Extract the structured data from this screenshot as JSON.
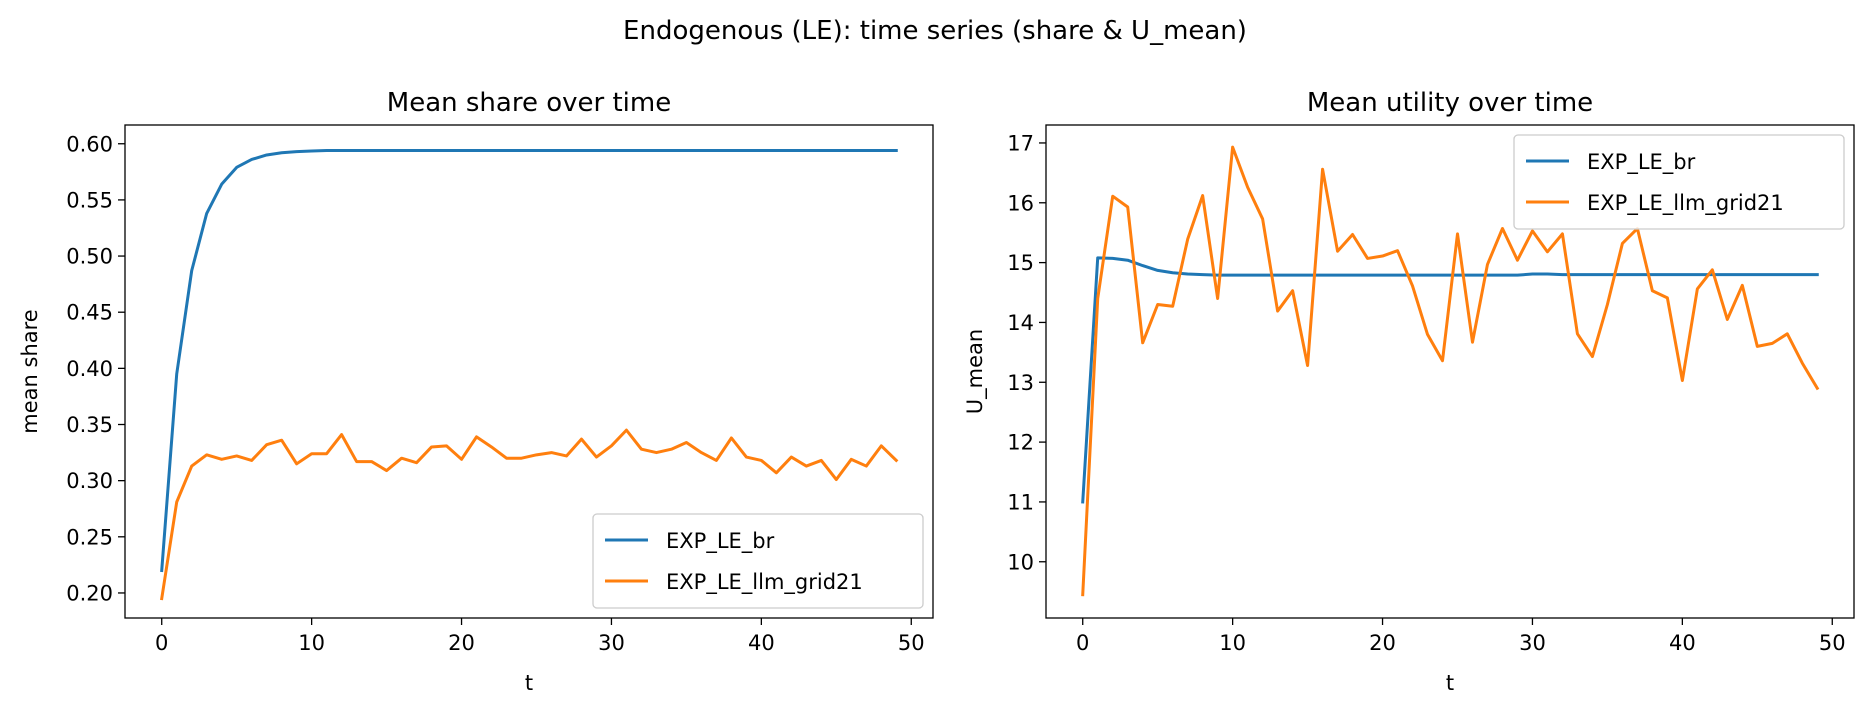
{
  "figure": {
    "suptitle": "Endogenous (LE): time series (share & U_mean)"
  },
  "colors": {
    "EXP_LE_br": "#1f77b4",
    "EXP_LE_llm_grid21": "#ff7f0e",
    "axes": "#000000",
    "legend_border": "#cccccc"
  },
  "chart_data": [
    {
      "type": "line",
      "title": "Mean share over time",
      "xlabel": "t",
      "ylabel": "mean share",
      "xlim": [
        -2.45,
        51.45
      ],
      "ylim": [
        0.1777,
        0.6167
      ],
      "xticks": [
        0,
        10,
        20,
        30,
        40,
        50
      ],
      "xtick_labels": [
        "0",
        "10",
        "20",
        "30",
        "40",
        "50"
      ],
      "yticks": [
        0.2,
        0.25,
        0.3,
        0.35,
        0.4,
        0.45,
        0.5,
        0.55,
        0.6
      ],
      "ytick_labels": [
        "0.20",
        "0.25",
        "0.30",
        "0.35",
        "0.40",
        "0.45",
        "0.50",
        "0.55",
        "0.60"
      ],
      "grid": false,
      "legend": "lower-right",
      "x": [
        0,
        1,
        2,
        3,
        4,
        5,
        6,
        7,
        8,
        9,
        10,
        11,
        12,
        13,
        14,
        15,
        16,
        17,
        18,
        19,
        20,
        21,
        22,
        23,
        24,
        25,
        26,
        27,
        28,
        29,
        30,
        31,
        32,
        33,
        34,
        35,
        36,
        37,
        38,
        39,
        40,
        41,
        42,
        43,
        44,
        45,
        46,
        47,
        48,
        49
      ],
      "series": [
        {
          "name": "EXP_LE_br",
          "values": [
            0.22,
            0.395,
            0.487,
            0.538,
            0.564,
            0.579,
            0.586,
            0.59,
            0.592,
            0.593,
            0.5935,
            0.594,
            0.594,
            0.594,
            0.594,
            0.594,
            0.594,
            0.594,
            0.594,
            0.594,
            0.594,
            0.594,
            0.594,
            0.594,
            0.594,
            0.594,
            0.594,
            0.594,
            0.594,
            0.594,
            0.594,
            0.594,
            0.594,
            0.594,
            0.594,
            0.594,
            0.594,
            0.594,
            0.594,
            0.594,
            0.594,
            0.594,
            0.594,
            0.594,
            0.594,
            0.594,
            0.594,
            0.594,
            0.594,
            0.594
          ]
        },
        {
          "name": "EXP_LE_llm_grid21",
          "values": [
            0.195,
            0.281,
            0.313,
            0.323,
            0.319,
            0.322,
            0.318,
            0.332,
            0.336,
            0.315,
            0.324,
            0.324,
            0.341,
            0.317,
            0.317,
            0.309,
            0.32,
            0.316,
            0.33,
            0.331,
            0.319,
            0.339,
            0.33,
            0.32,
            0.32,
            0.323,
            0.325,
            0.322,
            0.337,
            0.321,
            0.331,
            0.345,
            0.328,
            0.325,
            0.328,
            0.334,
            0.325,
            0.318,
            0.338,
            0.321,
            0.318,
            0.307,
            0.321,
            0.313,
            0.318,
            0.301,
            0.319,
            0.313,
            0.331,
            0.318
          ]
        }
      ]
    },
    {
      "type": "line",
      "title": "Mean utility over time",
      "xlabel": "t",
      "ylabel": "U_mean",
      "xlim": [
        -2.45,
        51.45
      ],
      "ylim": [
        9.06,
        17.3
      ],
      "xticks": [
        0,
        10,
        20,
        30,
        40,
        50
      ],
      "xtick_labels": [
        "0",
        "10",
        "20",
        "30",
        "40",
        "50"
      ],
      "yticks": [
        10,
        11,
        12,
        13,
        14,
        15,
        16,
        17
      ],
      "ytick_labels": [
        "10",
        "11",
        "12",
        "13",
        "14",
        "15",
        "16",
        "17"
      ],
      "grid": false,
      "legend": "upper-right",
      "x": [
        0,
        1,
        2,
        3,
        4,
        5,
        6,
        7,
        8,
        9,
        10,
        11,
        12,
        13,
        14,
        15,
        16,
        17,
        18,
        19,
        20,
        21,
        22,
        23,
        24,
        25,
        26,
        27,
        28,
        29,
        30,
        31,
        32,
        33,
        34,
        35,
        36,
        37,
        38,
        39,
        40,
        41,
        42,
        43,
        44,
        45,
        46,
        47,
        48,
        49
      ],
      "series": [
        {
          "name": "EXP_LE_br",
          "values": [
            11.0,
            15.08,
            15.07,
            15.04,
            14.95,
            14.87,
            14.83,
            14.81,
            14.8,
            14.79,
            14.79,
            14.79,
            14.79,
            14.79,
            14.79,
            14.79,
            14.79,
            14.79,
            14.79,
            14.79,
            14.79,
            14.79,
            14.79,
            14.79,
            14.79,
            14.79,
            14.79,
            14.79,
            14.79,
            14.79,
            14.81,
            14.81,
            14.8,
            14.8,
            14.8,
            14.8,
            14.8,
            14.8,
            14.8,
            14.8,
            14.8,
            14.8,
            14.8,
            14.8,
            14.8,
            14.8,
            14.8,
            14.8,
            14.8,
            14.8
          ]
        },
        {
          "name": "EXP_LE_llm_grid21",
          "values": [
            9.45,
            14.4,
            16.11,
            15.93,
            13.66,
            14.3,
            14.27,
            15.39,
            16.12,
            14.4,
            16.93,
            16.26,
            15.73,
            14.19,
            14.53,
            13.28,
            16.56,
            15.19,
            15.47,
            15.07,
            15.11,
            15.2,
            14.61,
            13.8,
            13.36,
            15.48,
            13.67,
            14.97,
            15.57,
            15.04,
            15.53,
            15.18,
            15.48,
            13.81,
            13.43,
            14.3,
            15.32,
            15.57,
            14.53,
            14.41,
            13.03,
            14.56,
            14.88,
            14.05,
            14.62,
            13.6,
            13.65,
            13.81,
            13.32,
            12.9
          ]
        }
      ]
    }
  ]
}
